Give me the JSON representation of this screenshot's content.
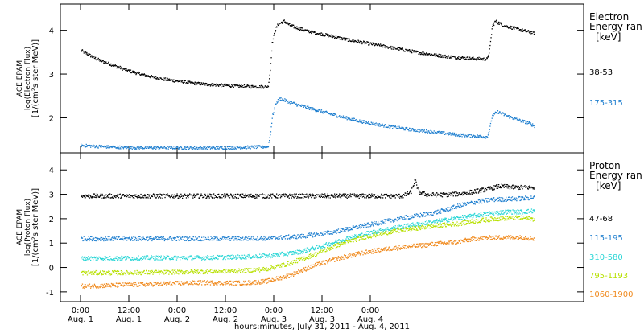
{
  "chart_data": [
    {
      "type": "scatter",
      "ylabel": [
        "ACE EPAM",
        "log(Electron Flux)",
        "[1/(cm²s ster MeV)]"
      ],
      "ylim": [
        1.2,
        4.6
      ],
      "yticks": [
        2,
        3,
        4
      ],
      "legend": {
        "title": [
          "Electron",
          "Energy ran",
          "[keV]"
        ],
        "placement": "right"
      },
      "series": [
        {
          "name": "38-53",
          "color": "#000000",
          "points": [
            [
              0,
              3.55
            ],
            [
              2,
              3.45
            ],
            [
              4,
              3.35
            ],
            [
              6,
              3.28
            ],
            [
              9,
              3.18
            ],
            [
              12,
              3.08
            ],
            [
              16,
              2.98
            ],
            [
              20,
              2.9
            ],
            [
              24,
              2.85
            ],
            [
              28,
              2.8
            ],
            [
              32,
              2.77
            ],
            [
              36,
              2.75
            ],
            [
              40,
              2.73
            ],
            [
              44,
              2.72
            ],
            [
              46.5,
              2.72
            ],
            [
              47,
              3.05
            ],
            [
              47.5,
              3.7
            ],
            [
              48.2,
              4.0
            ],
            [
              49,
              4.15
            ],
            [
              50.5,
              4.22
            ],
            [
              52,
              4.12
            ],
            [
              56,
              4.0
            ],
            [
              60,
              3.92
            ],
            [
              66,
              3.8
            ],
            [
              72,
              3.7
            ],
            [
              78,
              3.6
            ],
            [
              84,
              3.5
            ],
            [
              90,
              3.42
            ],
            [
              96,
              3.37
            ],
            [
              101,
              3.35
            ],
            [
              101.6,
              3.6
            ],
            [
              102.2,
              4.1
            ],
            [
              103,
              4.22
            ],
            [
              105,
              4.12
            ],
            [
              108,
              4.05
            ],
            [
              111,
              3.98
            ],
            [
              112.8,
              3.95
            ]
          ]
        },
        {
          "name": "175-315",
          "color": "#1f7fcf",
          "points": [
            [
              0,
              1.38
            ],
            [
              6,
              1.35
            ],
            [
              12,
              1.33
            ],
            [
              18,
              1.33
            ],
            [
              24,
              1.33
            ],
            [
              30,
              1.32
            ],
            [
              36,
              1.33
            ],
            [
              42,
              1.34
            ],
            [
              46.5,
              1.35
            ],
            [
              47,
              1.6
            ],
            [
              47.6,
              2.05
            ],
            [
              48.4,
              2.35
            ],
            [
              49.5,
              2.45
            ],
            [
              51,
              2.4
            ],
            [
              54,
              2.3
            ],
            [
              58,
              2.2
            ],
            [
              64,
              2.05
            ],
            [
              70,
              1.92
            ],
            [
              76,
              1.82
            ],
            [
              82,
              1.74
            ],
            [
              88,
              1.68
            ],
            [
              94,
              1.62
            ],
            [
              100,
              1.58
            ],
            [
              101,
              1.58
            ],
            [
              101.6,
              1.78
            ],
            [
              102.2,
              2.05
            ],
            [
              103.5,
              2.15
            ],
            [
              106,
              2.05
            ],
            [
              109,
              1.95
            ],
            [
              111,
              1.9
            ],
            [
              112.8,
              1.82
            ]
          ]
        }
      ]
    },
    {
      "type": "scatter",
      "ylabel": [
        "ACE EPAM",
        "log(Proton Flux)",
        "[1/(cm²s ster MeV)]"
      ],
      "ylim": [
        -1.4,
        4.7
      ],
      "yticks": [
        -1,
        0,
        1,
        2,
        3,
        4
      ],
      "legend": {
        "title": [
          "Proton",
          "Energy ran",
          "[keV]"
        ],
        "placement": "right"
      },
      "series": [
        {
          "name": "47-68",
          "color": "#000000",
          "points": [
            [
              0,
              2.95
            ],
            [
              10,
              2.95
            ],
            [
              20,
              2.95
            ],
            [
              30,
              2.95
            ],
            [
              40,
              2.95
            ],
            [
              47,
              2.95
            ],
            [
              50,
              2.95
            ],
            [
              60,
              2.95
            ],
            [
              70,
              2.95
            ],
            [
              80,
              2.95
            ],
            [
              82,
              3.1
            ],
            [
              83,
              3.6
            ],
            [
              84,
              3.1
            ],
            [
              86,
              3.0
            ],
            [
              90,
              3.0
            ],
            [
              95,
              3.05
            ],
            [
              100,
              3.2
            ],
            [
              104,
              3.35
            ],
            [
              108,
              3.3
            ],
            [
              112.8,
              3.3
            ]
          ]
        },
        {
          "name": "115-195",
          "color": "#1f7fcf",
          "points": [
            [
              0,
              1.2
            ],
            [
              10,
              1.2
            ],
            [
              20,
              1.2
            ],
            [
              30,
              1.2
            ],
            [
              40,
              1.2
            ],
            [
              47,
              1.22
            ],
            [
              55,
              1.3
            ],
            [
              62,
              1.45
            ],
            [
              68,
              1.65
            ],
            [
              74,
              1.85
            ],
            [
              80,
              2.05
            ],
            [
              86,
              2.2
            ],
            [
              90,
              2.35
            ],
            [
              94,
              2.55
            ],
            [
              98,
              2.7
            ],
            [
              102,
              2.8
            ],
            [
              106,
              2.82
            ],
            [
              110,
              2.85
            ],
            [
              112.8,
              2.9
            ]
          ]
        },
        {
          "name": "310-580",
          "color": "#2ad6d6",
          "points": [
            [
              0,
              0.4
            ],
            [
              10,
              0.4
            ],
            [
              20,
              0.42
            ],
            [
              30,
              0.42
            ],
            [
              40,
              0.45
            ],
            [
              47,
              0.5
            ],
            [
              54,
              0.65
            ],
            [
              60,
              0.9
            ],
            [
              66,
              1.2
            ],
            [
              72,
              1.45
            ],
            [
              78,
              1.65
            ],
            [
              84,
              1.8
            ],
            [
              90,
              1.95
            ],
            [
              94,
              2.05
            ],
            [
              98,
              2.15
            ],
            [
              102,
              2.25
            ],
            [
              106,
              2.3
            ],
            [
              110,
              2.3
            ],
            [
              112.8,
              2.35
            ]
          ]
        },
        {
          "name": "795-1193",
          "color": "#b7e000",
          "points": [
            [
              0,
              -0.2
            ],
            [
              10,
              -0.2
            ],
            [
              20,
              -0.18
            ],
            [
              30,
              -0.15
            ],
            [
              40,
              -0.12
            ],
            [
              46,
              -0.05
            ],
            [
              52,
              0.2
            ],
            [
              58,
              0.55
            ],
            [
              64,
              0.95
            ],
            [
              70,
              1.25
            ],
            [
              76,
              1.45
            ],
            [
              82,
              1.6
            ],
            [
              88,
              1.72
            ],
            [
              94,
              1.82
            ],
            [
              98,
              1.92
            ],
            [
              102,
              2.0
            ],
            [
              106,
              2.05
            ],
            [
              110,
              2.05
            ],
            [
              112.8,
              2.0
            ]
          ]
        },
        {
          "name": "1060-1900",
          "color": "#f08a1e",
          "points": [
            [
              0,
              -0.75
            ],
            [
              10,
              -0.7
            ],
            [
              20,
              -0.65
            ],
            [
              30,
              -0.6
            ],
            [
              40,
              -0.62
            ],
            [
              46,
              -0.55
            ],
            [
              52,
              -0.3
            ],
            [
              58,
              0.1
            ],
            [
              64,
              0.4
            ],
            [
              70,
              0.62
            ],
            [
              76,
              0.78
            ],
            [
              82,
              0.88
            ],
            [
              88,
              0.98
            ],
            [
              94,
              1.08
            ],
            [
              98,
              1.2
            ],
            [
              102,
              1.25
            ],
            [
              106,
              1.25
            ],
            [
              110,
              1.25
            ],
            [
              112.8,
              1.2
            ]
          ]
        }
      ]
    }
  ],
  "x_axis": {
    "range_hours": [
      -5,
      125
    ],
    "ticks": [
      {
        "hours": 0,
        "time": "0:00",
        "day": "Aug. 1"
      },
      {
        "hours": 12,
        "time": "12:00",
        "day": "Aug. 1"
      },
      {
        "hours": 24,
        "time": "0:00",
        "day": "Aug. 2"
      },
      {
        "hours": 36,
        "time": "12:00",
        "day": "Aug. 2"
      },
      {
        "hours": 48,
        "time": "0:00",
        "day": "Aug. 3"
      },
      {
        "hours": 60,
        "time": "12:00",
        "day": "Aug. 3"
      },
      {
        "hours": 72,
        "time": "0:00",
        "day": "Aug. 4"
      }
    ],
    "xlabel": "hours:minutes, July 31, 2011 - Aug. 4, 2011"
  }
}
